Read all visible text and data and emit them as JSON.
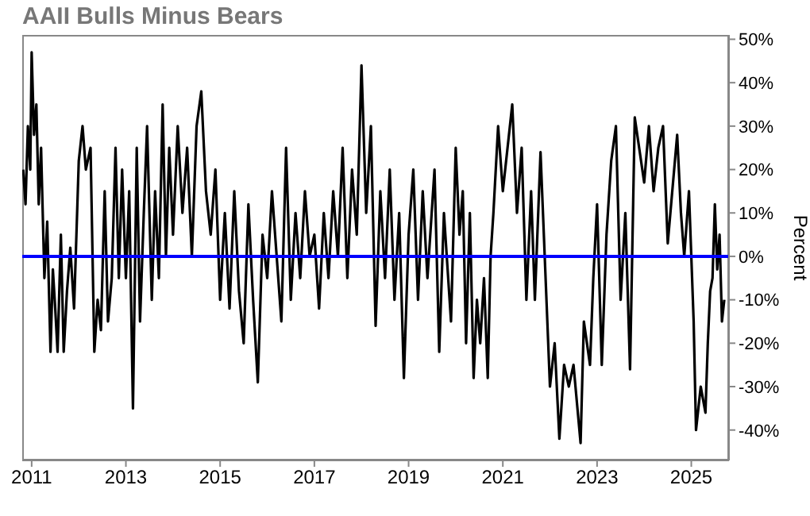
{
  "chart_data": {
    "type": "line",
    "title": "AAII Bulls Minus Bears",
    "ylabel": "Percent",
    "x": [
      2010.82,
      2010.87,
      2010.92,
      2010.97,
      2011.0,
      2011.05,
      2011.1,
      2011.15,
      2011.2,
      2011.27,
      2011.33,
      2011.4,
      2011.45,
      2011.5,
      2011.55,
      2011.62,
      2011.68,
      2011.75,
      2011.82,
      2011.9,
      2012.0,
      2012.08,
      2012.15,
      2012.25,
      2012.33,
      2012.4,
      2012.47,
      2012.55,
      2012.62,
      2012.7,
      2012.78,
      2012.85,
      2012.92,
      2013.0,
      2013.07,
      2013.15,
      2013.23,
      2013.3,
      2013.38,
      2013.45,
      2013.55,
      2013.62,
      2013.7,
      2013.78,
      2013.85,
      2013.92,
      2014.0,
      2014.1,
      2014.2,
      2014.3,
      2014.4,
      2014.5,
      2014.6,
      2014.7,
      2014.8,
      2014.9,
      2015.0,
      2015.1,
      2015.2,
      2015.3,
      2015.4,
      2015.5,
      2015.6,
      2015.7,
      2015.8,
      2015.9,
      2016.0,
      2016.1,
      2016.2,
      2016.3,
      2016.4,
      2016.5,
      2016.6,
      2016.7,
      2016.8,
      2016.9,
      2017.0,
      2017.1,
      2017.2,
      2017.3,
      2017.4,
      2017.5,
      2017.6,
      2017.7,
      2017.8,
      2017.9,
      2018.0,
      2018.1,
      2018.2,
      2018.3,
      2018.4,
      2018.5,
      2018.6,
      2018.7,
      2018.8,
      2018.9,
      2019.0,
      2019.1,
      2019.2,
      2019.3,
      2019.4,
      2019.55,
      2019.65,
      2019.75,
      2019.9,
      2020.0,
      2020.08,
      2020.15,
      2020.22,
      2020.3,
      2020.38,
      2020.45,
      2020.52,
      2020.6,
      2020.68,
      2020.74,
      2020.8,
      2020.9,
      2021.0,
      2021.2,
      2021.3,
      2021.4,
      2021.5,
      2021.6,
      2021.68,
      2021.8,
      2022.0,
      2022.1,
      2022.2,
      2022.3,
      2022.4,
      2022.5,
      2022.65,
      2022.72,
      2022.85,
      2022.92,
      2023.0,
      2023.1,
      2023.2,
      2023.3,
      2023.4,
      2023.5,
      2023.6,
      2023.7,
      2023.8,
      2024.0,
      2024.1,
      2024.2,
      2024.3,
      2024.4,
      2024.5,
      2024.7,
      2024.78,
      2024.85,
      2024.95,
      2025.05,
      2025.1,
      2025.2,
      2025.3,
      2025.35,
      2025.4,
      2025.45,
      2025.5,
      2025.55,
      2025.6,
      2025.65,
      2025.7
    ],
    "series": [
      {
        "color": "#000000",
        "values": [
          20,
          12,
          30,
          20,
          47,
          28,
          35,
          12,
          25,
          -5,
          8,
          -22,
          -3,
          -12,
          -22,
          5,
          -22,
          -8,
          2,
          -12,
          22,
          30,
          20,
          25,
          -22,
          -10,
          -17,
          15,
          -15,
          -5,
          25,
          -5,
          20,
          -5,
          15,
          -35,
          25,
          -15,
          10,
          30,
          -10,
          15,
          -5,
          35,
          0,
          25,
          5,
          30,
          10,
          25,
          0,
          30,
          38,
          15,
          5,
          20,
          -10,
          10,
          -12,
          15,
          -8,
          -20,
          12,
          -10,
          -29,
          5,
          -5,
          15,
          0,
          -15,
          25,
          -10,
          10,
          -5,
          15,
          0,
          5,
          -12,
          10,
          -5,
          15,
          0,
          25,
          -5,
          20,
          5,
          44,
          10,
          30,
          -16,
          15,
          -5,
          20,
          -10,
          10,
          -28,
          5,
          20,
          -10,
          15,
          -5,
          20,
          -22,
          10,
          -15,
          25,
          5,
          15,
          -20,
          10,
          -28,
          -10,
          -20,
          -5,
          -28,
          0,
          10,
          30,
          15,
          35,
          10,
          25,
          -10,
          15,
          -10,
          24,
          -30,
          -20,
          -42,
          -25,
          -30,
          -25,
          -43,
          -15,
          -25,
          -5,
          12,
          -25,
          5,
          22,
          30,
          -10,
          10,
          -26,
          32,
          17,
          30,
          15,
          25,
          30,
          3,
          28,
          10,
          0,
          15,
          -15,
          -40,
          -30,
          -36,
          -20,
          -8,
          -5,
          12,
          -3,
          5,
          -15,
          -10
        ]
      }
    ],
    "xlim": [
      2010.8,
      2025.8
    ],
    "ylim": [
      -47,
      51
    ],
    "xticks": [
      2011,
      2013,
      2015,
      2017,
      2019,
      2021,
      2023,
      2025
    ],
    "yticks": [
      {
        "value": -40,
        "label": "-40%"
      },
      {
        "value": -30,
        "label": "-30%"
      },
      {
        "value": -20,
        "label": "-20%"
      },
      {
        "value": -10,
        "label": "-10%"
      },
      {
        "value": 0,
        "label": "0%"
      },
      {
        "value": 10,
        "label": "10%"
      },
      {
        "value": 20,
        "label": "20%"
      },
      {
        "value": 30,
        "label": "30%"
      },
      {
        "value": 40,
        "label": "40%"
      },
      {
        "value": 50,
        "label": "50%"
      }
    ],
    "ref_lines": [
      {
        "axis": "y",
        "value": 0,
        "color": "#0000ff"
      }
    ],
    "marker": "none",
    "legend": false,
    "grid": false
  }
}
